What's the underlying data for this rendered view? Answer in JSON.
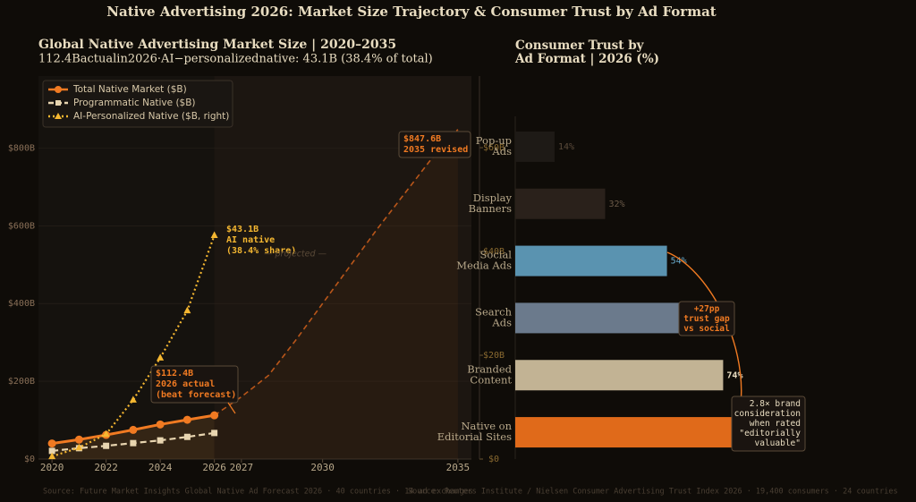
{
  "title": "Native Advertising 2026: Market Size Trajectory & Consumer Trust by Ad Format",
  "sources": [
    "Source: Future Market Insights Global Native Ad Forecast 2026 · 40 countries · 14 ad exchanges",
    "Source: Reuters Institute / Nielsen Consumer Advertising Trust Index 2026 · 19,400 consumers · 24 countries"
  ],
  "chart_data": [
    {
      "type": "line",
      "title": "Global Native Advertising Market Size  |  2020–2035",
      "subtitle": "112.4Bactualin2026·AI−personalizednative: 43.1B (38.4% of total)",
      "x": [
        2020,
        2021,
        2022,
        2023,
        2024,
        2025,
        2026
      ],
      "series": [
        {
          "name": "Total Native Market ($B)",
          "color": "#f07a22",
          "marker": "circle",
          "values": [
            40,
            50,
            62,
            75,
            89,
            101,
            112.4
          ]
        },
        {
          "name": "Programmatic Native ($B)",
          "color": "#e8d5b0",
          "marker": "square",
          "values": [
            21,
            28,
            34,
            41,
            48,
            57,
            67
          ]
        },
        {
          "name": "AI-Personalized Native ($B, right)",
          "color": "#f5b731",
          "marker": "triangle",
          "axis": "y2",
          "values": [
            0.5,
            2.2,
            4.8,
            11.4,
            19.5,
            28.6,
            43.1
          ]
        }
      ],
      "projection": {
        "x": [
          2026,
          2027,
          2028,
          2029,
          2030,
          2031,
          2032,
          2033,
          2034,
          2035
        ],
        "values": [
          112.4,
          160,
          215,
          305,
          400,
          495,
          590,
          680,
          770,
          847.6
        ],
        "color": "#b8561a"
      },
      "xlim": [
        2019.5,
        2035.5
      ],
      "xticks": [
        2020,
        2022,
        2024,
        2026,
        2027,
        2030,
        2035
      ],
      "ylim": [
        0,
        985
      ],
      "yticks": [
        {
          "value": 0,
          "label": "$0"
        },
        {
          "value": 200,
          "label": "$200B"
        },
        {
          "value": 400,
          "label": "$400B"
        },
        {
          "value": 600,
          "label": "$600B"
        },
        {
          "value": 800,
          "label": "$800B"
        }
      ],
      "y2lim": [
        0,
        73.8
      ],
      "y2ticks": [
        {
          "value": 0,
          "label": "$0"
        },
        {
          "value": 20,
          "label": "$20B"
        },
        {
          "value": 40,
          "label": "$40B"
        },
        {
          "value": 60,
          "label": "$60B"
        }
      ],
      "grid": true,
      "legend": "upper left",
      "annotations": [
        "$112.4B\n2026 actual\n(beat forecast)",
        "$43.1B\nAI native\n(38.4% share)",
        "$847.6B\n2035 revised",
        "— projected —"
      ]
    },
    {
      "type": "barh",
      "title": "Consumer Trust by\nAd Format  |  2026 (%)",
      "categories": [
        "Pop-up\nAds",
        "Display\nBanners",
        "Social\nMedia Ads",
        "Search\nAds",
        "Branded\nContent",
        "Native on\nEditorial Sites"
      ],
      "values": [
        14,
        32,
        54,
        60,
        74,
        81
      ],
      "value_labels": [
        "14%",
        "32%",
        "54%",
        null,
        "74%",
        null
      ],
      "colors": [
        "#1e1a16",
        "#2a211b",
        "#5a93b0",
        "#6b7a8c",
        "#c2b394",
        "#e06a1a"
      ],
      "xlim": [
        0,
        135
      ],
      "annotations": [
        "+27pp\ntrust gap\nvs social",
        "2.8× brand\nconsideration\nwhen rated\n\"editorially\nvaluable\""
      ]
    }
  ]
}
